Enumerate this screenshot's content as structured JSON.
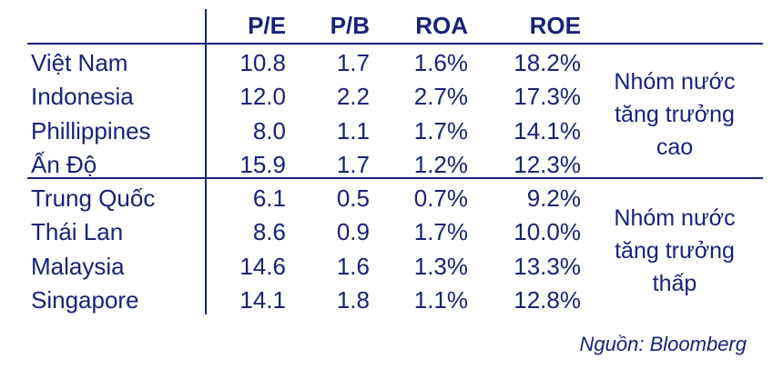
{
  "chart_data": {
    "type": "table",
    "columns": [
      "P/E",
      "P/B",
      "ROA",
      "ROE"
    ],
    "rows": [
      {
        "country": "Việt Nam",
        "pe": "10.8",
        "pb": "1.7",
        "roa": "1.6%",
        "roe": "18.2%"
      },
      {
        "country": "Indonesia",
        "pe": "12.0",
        "pb": "2.2",
        "roa": "2.7%",
        "roe": "17.3%"
      },
      {
        "country": "Phillippines",
        "pe": "8.0",
        "pb": "1.1",
        "roa": "1.7%",
        "roe": "14.1%"
      },
      {
        "country": "Ấn Độ",
        "pe": "15.9",
        "pb": "1.7",
        "roa": "1.2%",
        "roe": "12.3%"
      },
      {
        "country": "Trung Quốc",
        "pe": "6.1",
        "pb": "0.5",
        "roa": "0.7%",
        "roe": "9.2%"
      },
      {
        "country": "Thái Lan",
        "pe": "8.6",
        "pb": "0.9",
        "roa": "1.7%",
        "roe": "10.0%"
      },
      {
        "country": "Malaysia",
        "pe": "14.6",
        "pb": "1.6",
        "roa": "1.3%",
        "roe": "13.3%"
      },
      {
        "country": "Singapore",
        "pe": "14.1",
        "pb": "1.8",
        "roa": "1.1%",
        "roe": "12.8%"
      }
    ],
    "groups": [
      {
        "label_lines": [
          "Nhóm nước",
          "tăng trưởng",
          "cao"
        ]
      },
      {
        "label_lines": [
          "Nhóm nước",
          "tăng trưởng",
          "thấp"
        ]
      }
    ]
  },
  "source": "Nguồn: Bloomberg",
  "colors": {
    "text": "#18227a"
  }
}
